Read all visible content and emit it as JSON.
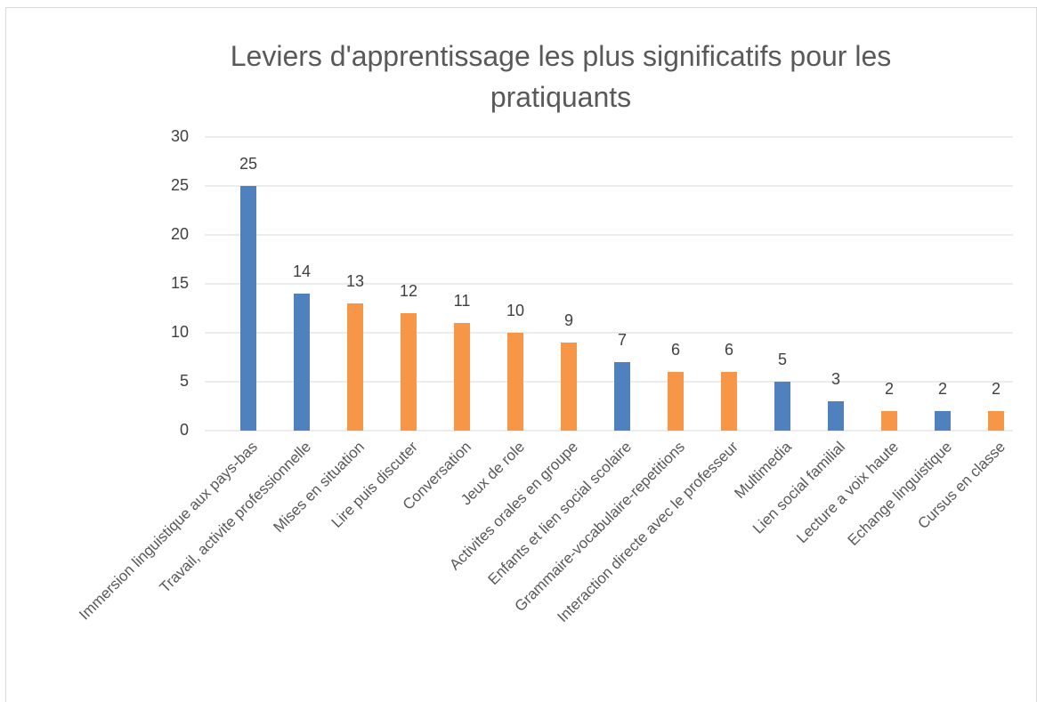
{
  "chart_data": {
    "type": "bar",
    "title": "Leviers d'apprentissage les plus significatifs pour les pratiquants",
    "categories": [
      "Immersion linguistique aux pays-bas",
      "Travail, activite professionnelle",
      "Mises en situation",
      "Lire puis discuter",
      "Conversation",
      "Jeux de role",
      "Activites orales en groupe",
      "Enfants et lien social scolaire",
      "Grammaire-vocabulaire-repetitions",
      "Interaction directe avec le professeur",
      "Multimedia",
      "Lien social familial",
      "Lecture a voix haute",
      "Echange linguistique",
      "Cursus en classe"
    ],
    "values": [
      25,
      14,
      13,
      12,
      11,
      10,
      9,
      7,
      6,
      6,
      5,
      3,
      2,
      2,
      2
    ],
    "colors": [
      "#4e81bd",
      "#4e81bd",
      "#f79646",
      "#f79646",
      "#f79646",
      "#f79646",
      "#f79646",
      "#4e81bd",
      "#f79646",
      "#f79646",
      "#4e81bd",
      "#4e81bd",
      "#f79646",
      "#4e81bd",
      "#f79646"
    ],
    "ylim": [
      0,
      30
    ],
    "yticks": [
      0,
      5,
      10,
      15,
      20,
      25,
      30
    ],
    "grid": true
  }
}
